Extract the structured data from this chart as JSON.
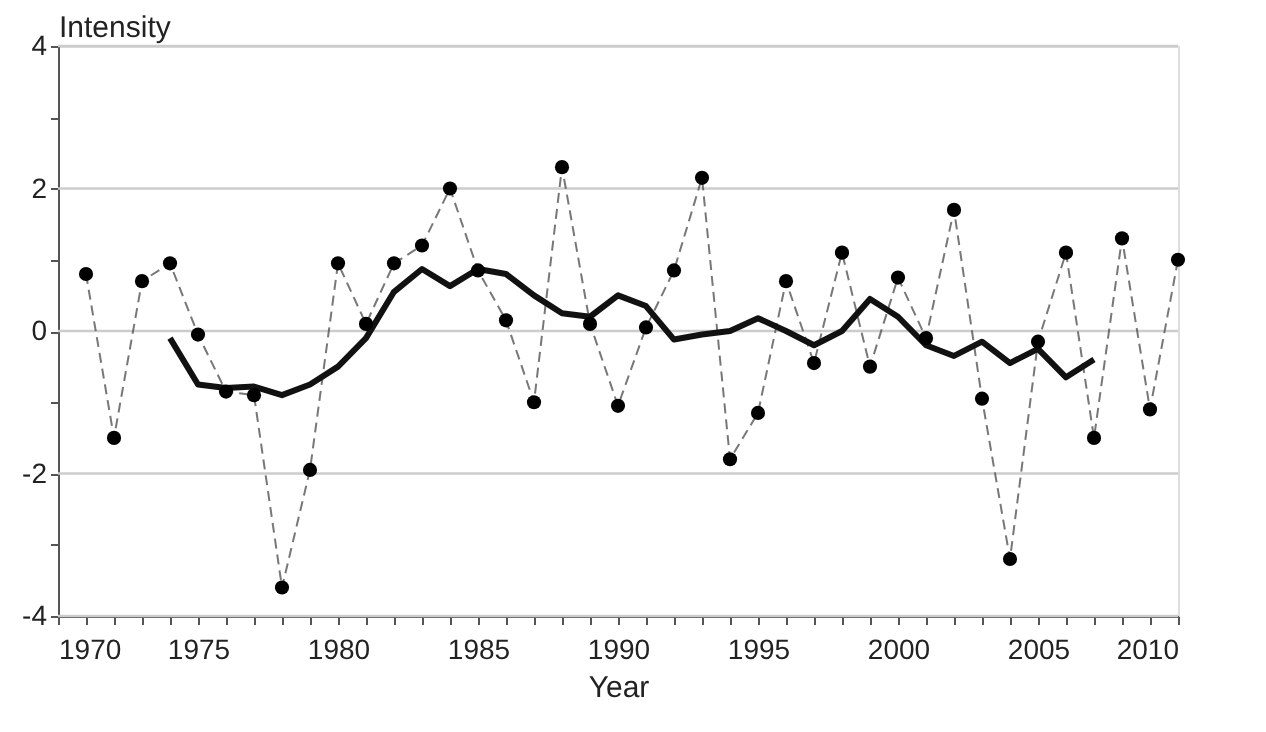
{
  "chart_data": {
    "type": "line",
    "xlabel": "Year",
    "ylabel": "Intensity",
    "xlim": [
      1970,
      2010
    ],
    "ylim": [
      -4,
      4
    ],
    "xticks": [
      1970,
      {
        "value": 1971,
        "label": null
      },
      {
        "value": 1972,
        "label": null
      },
      {
        "value": 1973,
        "label": null
      },
      {
        "value": 1974,
        "label": null
      },
      1975,
      {
        "value": 1976,
        "label": null
      },
      {
        "value": 1977,
        "label": null
      },
      {
        "value": 1978,
        "label": null
      },
      {
        "value": 1979,
        "label": null
      },
      1980,
      {
        "value": 1981,
        "label": null
      },
      {
        "value": 1982,
        "label": null
      },
      {
        "value": 1983,
        "label": null
      },
      {
        "value": 1984,
        "label": null
      },
      1985,
      {
        "value": 1986,
        "label": null
      },
      {
        "value": 1987,
        "label": null
      },
      {
        "value": 1988,
        "label": null
      },
      {
        "value": 1989,
        "label": null
      },
      1990,
      {
        "value": 1991,
        "label": null
      },
      {
        "value": 1992,
        "label": null
      },
      {
        "value": 1993,
        "label": null
      },
      {
        "value": 1994,
        "label": null
      },
      1995,
      {
        "value": 1996,
        "label": null
      },
      {
        "value": 1997,
        "label": null
      },
      {
        "value": 1998,
        "label": null
      },
      {
        "value": 1999,
        "label": null
      },
      2000,
      {
        "value": 2001,
        "label": null
      },
      {
        "value": 2002,
        "label": null
      },
      {
        "value": 2003,
        "label": null
      },
      {
        "value": 2004,
        "label": null
      },
      2005,
      {
        "value": 2006,
        "label": null
      },
      {
        "value": 2007,
        "label": null
      },
      {
        "value": 2008,
        "label": null
      },
      {
        "value": 2009,
        "label": null
      },
      2010
    ],
    "yticks": [
      -4,
      {
        "value": -3,
        "label": null
      },
      -2,
      {
        "value": -1,
        "label": null
      },
      0,
      {
        "value": 1,
        "label": null
      },
      2,
      {
        "value": 3,
        "label": null
      },
      4
    ],
    "grid": "y",
    "series": [
      {
        "color": "#555555",
        "marker": "circle",
        "line_style": "dashed",
        "x": [
          1971,
          1972,
          1973,
          1974,
          1975,
          1976,
          1977,
          1978,
          1979,
          1980,
          1981,
          1982,
          1983,
          1984,
          1985,
          1986,
          1987,
          1988,
          1989,
          1990,
          1991,
          1992,
          1993,
          1994,
          1995,
          1996,
          1997,
          1998,
          1999,
          2000,
          2001,
          2002,
          2003,
          2004,
          2005,
          2006,
          2007,
          2008,
          2009,
          2010
        ],
        "values": [
          0.8,
          -1.5,
          0.7,
          0.95,
          -0.05,
          -0.85,
          -0.9,
          -3.6,
          -1.95,
          0.95,
          0.1,
          0.95,
          1.2,
          2.0,
          0.85,
          0.15,
          -1.0,
          2.3,
          0.1,
          -1.05,
          0.05,
          0.85,
          2.15,
          -1.8,
          -1.15,
          0.7,
          -0.45,
          1.1,
          -0.5,
          0.75,
          -0.1,
          1.7,
          -0.95,
          -3.2,
          -0.15,
          1.1,
          -1.5,
          1.3,
          -1.1,
          1.0
        ]
      },
      {
        "color": "#111111",
        "marker": "none",
        "line_style": "solid",
        "x": [
          1974,
          1975,
          1976,
          1977,
          1978,
          1979,
          1980,
          1981,
          1982,
          1983,
          1984,
          1985,
          1986,
          1987,
          1988,
          1989,
          1990,
          1991,
          1992,
          1993,
          1994,
          1995,
          1996,
          1997,
          1998,
          1999,
          2000,
          2001,
          2002,
          2003,
          2004,
          2005,
          2006,
          2007
        ],
        "values": [
          -0.1,
          -0.75,
          -0.8,
          -0.78,
          -0.9,
          -0.75,
          -0.5,
          -0.1,
          0.55,
          0.87,
          0.63,
          0.87,
          0.8,
          0.5,
          0.25,
          0.2,
          0.5,
          0.35,
          -0.12,
          -0.05,
          0.0,
          0.18,
          0.0,
          -0.2,
          0.0,
          0.45,
          0.2,
          -0.2,
          -0.35,
          -0.15,
          -0.45,
          -0.25,
          -0.65,
          -0.4
        ]
      }
    ]
  }
}
